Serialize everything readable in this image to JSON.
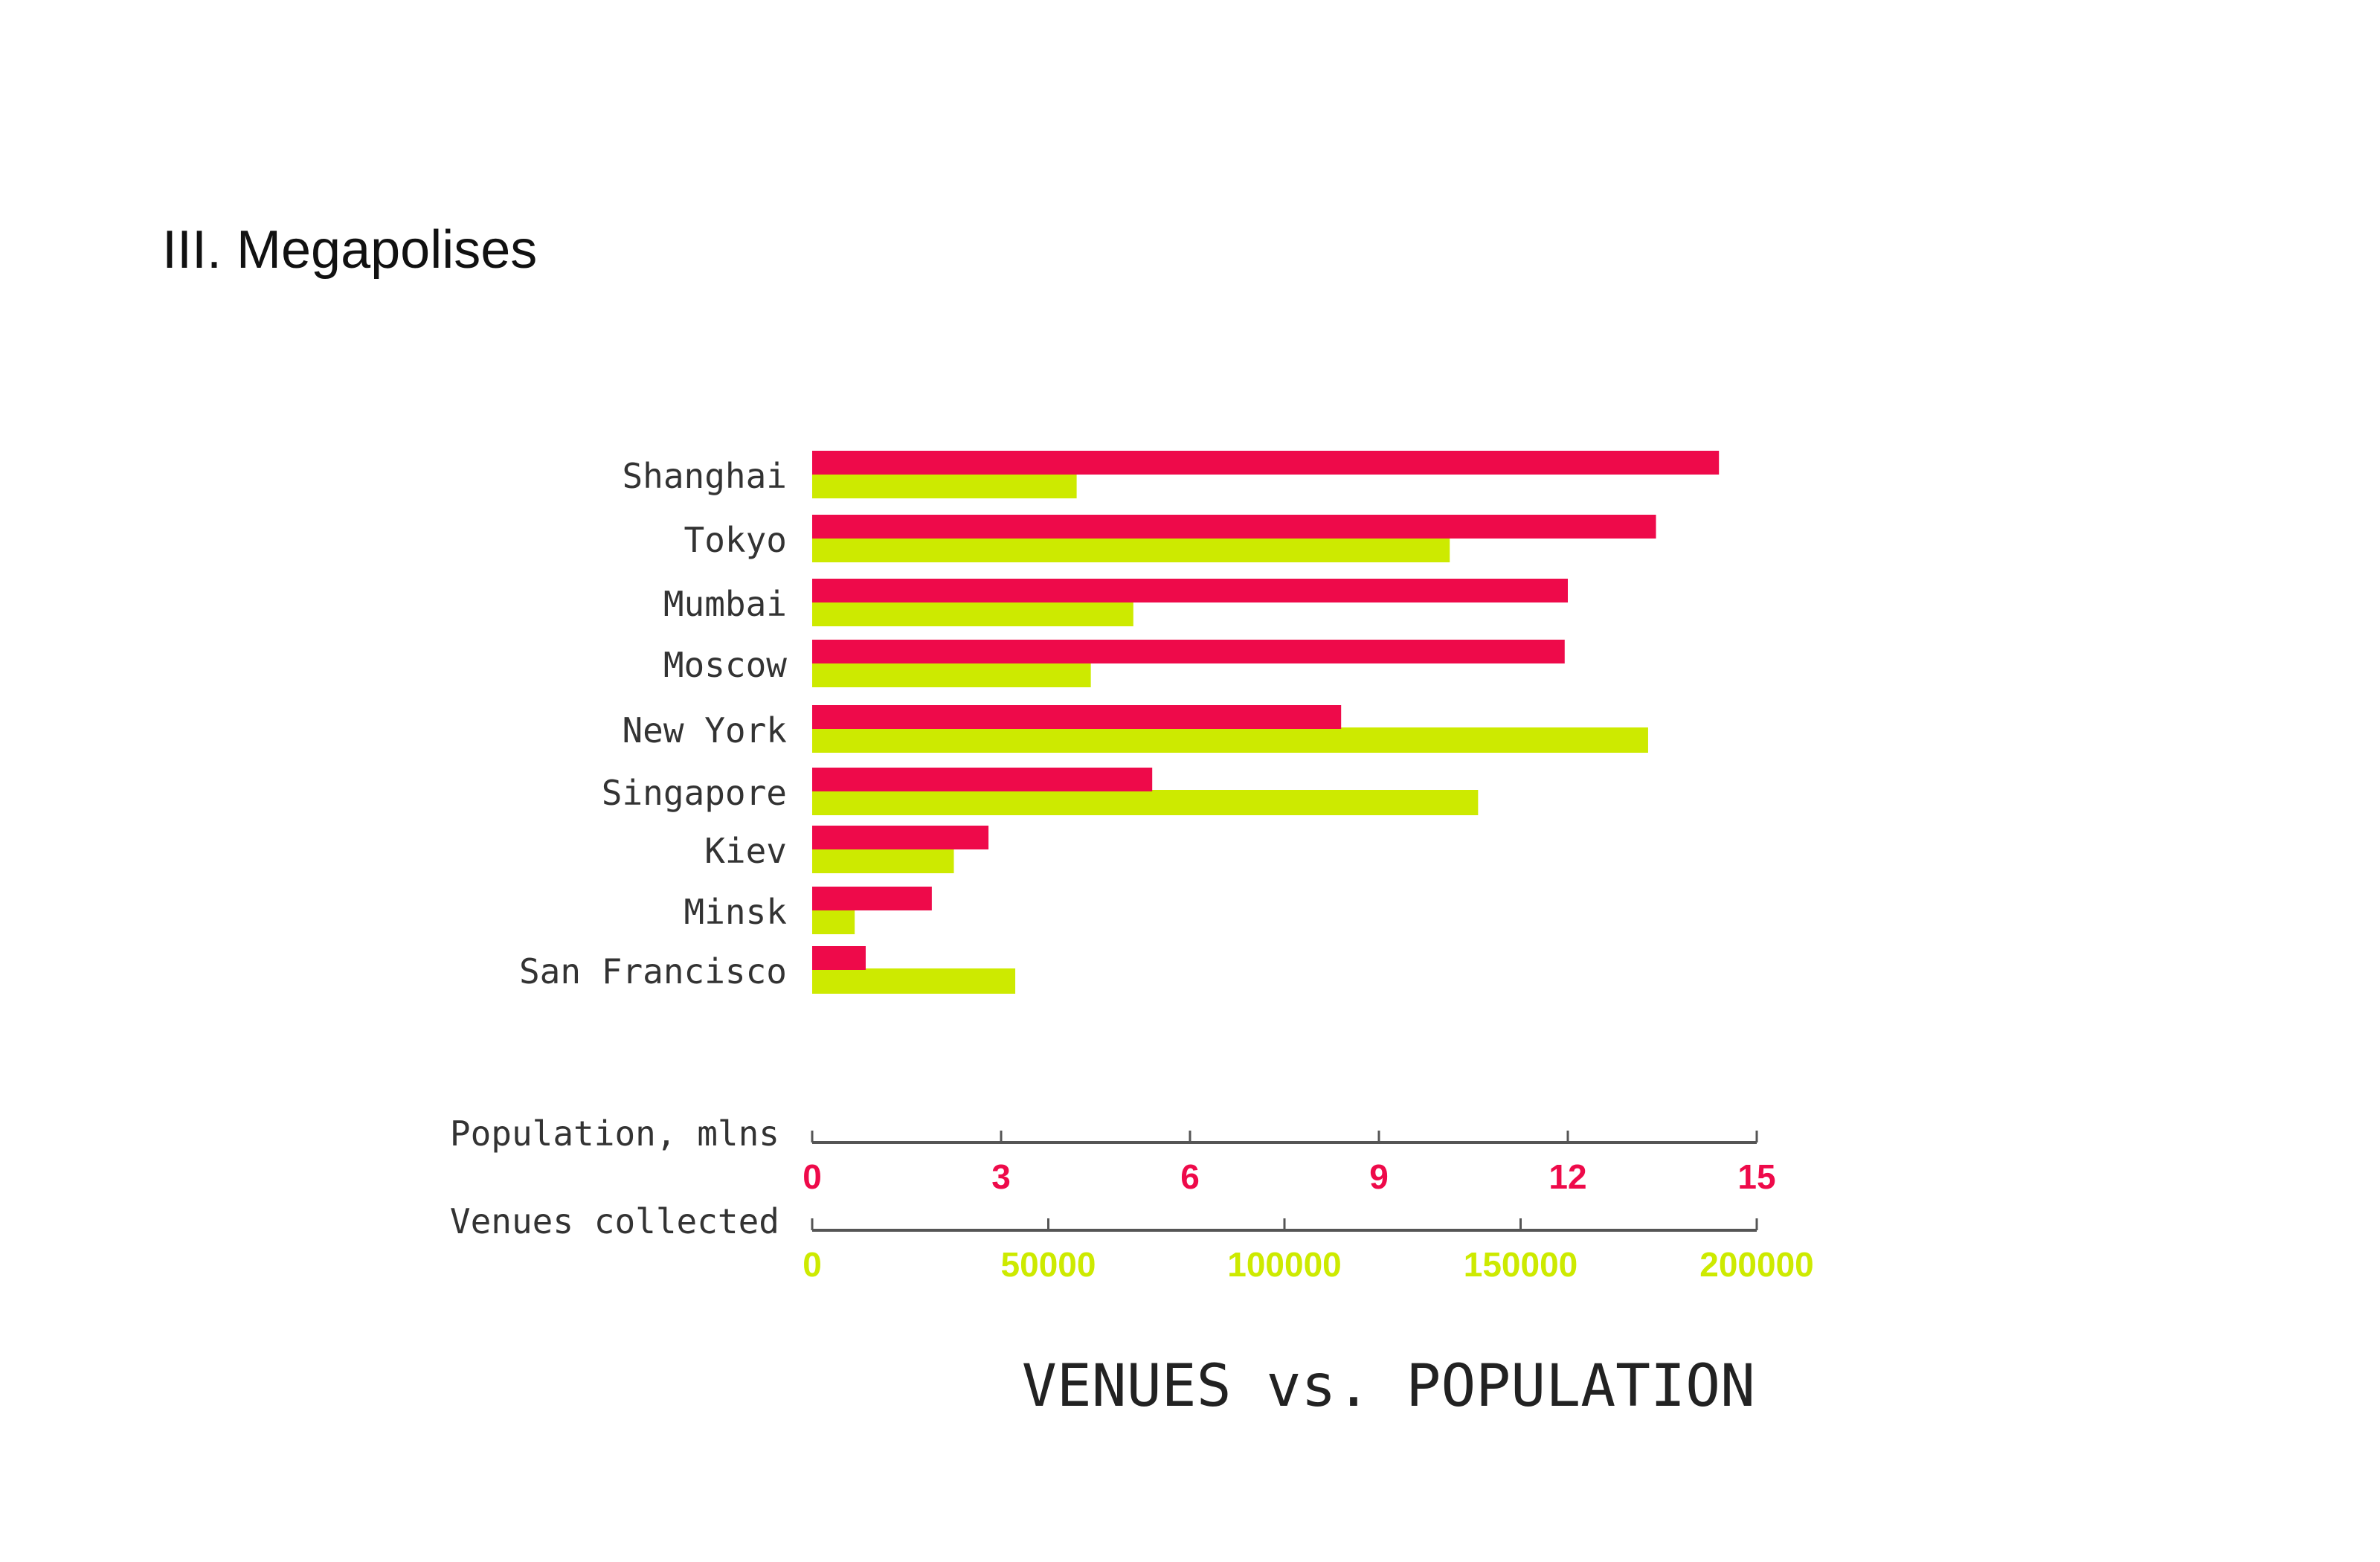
{
  "page": {
    "section_title": "III. Megapolises"
  },
  "chart_data": {
    "type": "bar",
    "title": "VENUES vs. POPULATION",
    "categories": [
      "Shanghai",
      "Tokyo",
      "Mumbai",
      "Moscow",
      "New York",
      "Singapore",
      "Kiev",
      "Minsk",
      "San Francisco"
    ],
    "series": [
      {
        "values": [
          14.4,
          13.4,
          12.0,
          11.95,
          8.4,
          5.4,
          2.8,
          1.9,
          0.85
        ],
        "color": "#ee0a4a"
      },
      {
        "values": [
          56000,
          135000,
          68000,
          59000,
          177000,
          141000,
          30000,
          9000,
          43000
        ],
        "color": "#cdea00"
      }
    ],
    "axes": [
      {
        "label": "Population, mlns",
        "ticks": [
          "0",
          "3",
          "6",
          "9",
          "12",
          "15"
        ],
        "range": [
          0,
          15
        ],
        "color": "#ee0a4a"
      },
      {
        "label": "Venues collected",
        "ticks": [
          "0",
          "50000",
          "100000",
          "150000",
          "200000"
        ],
        "range": [
          0,
          200000
        ],
        "color": "#cdea00"
      }
    ],
    "orientation": "horizontal",
    "grid": false
  }
}
